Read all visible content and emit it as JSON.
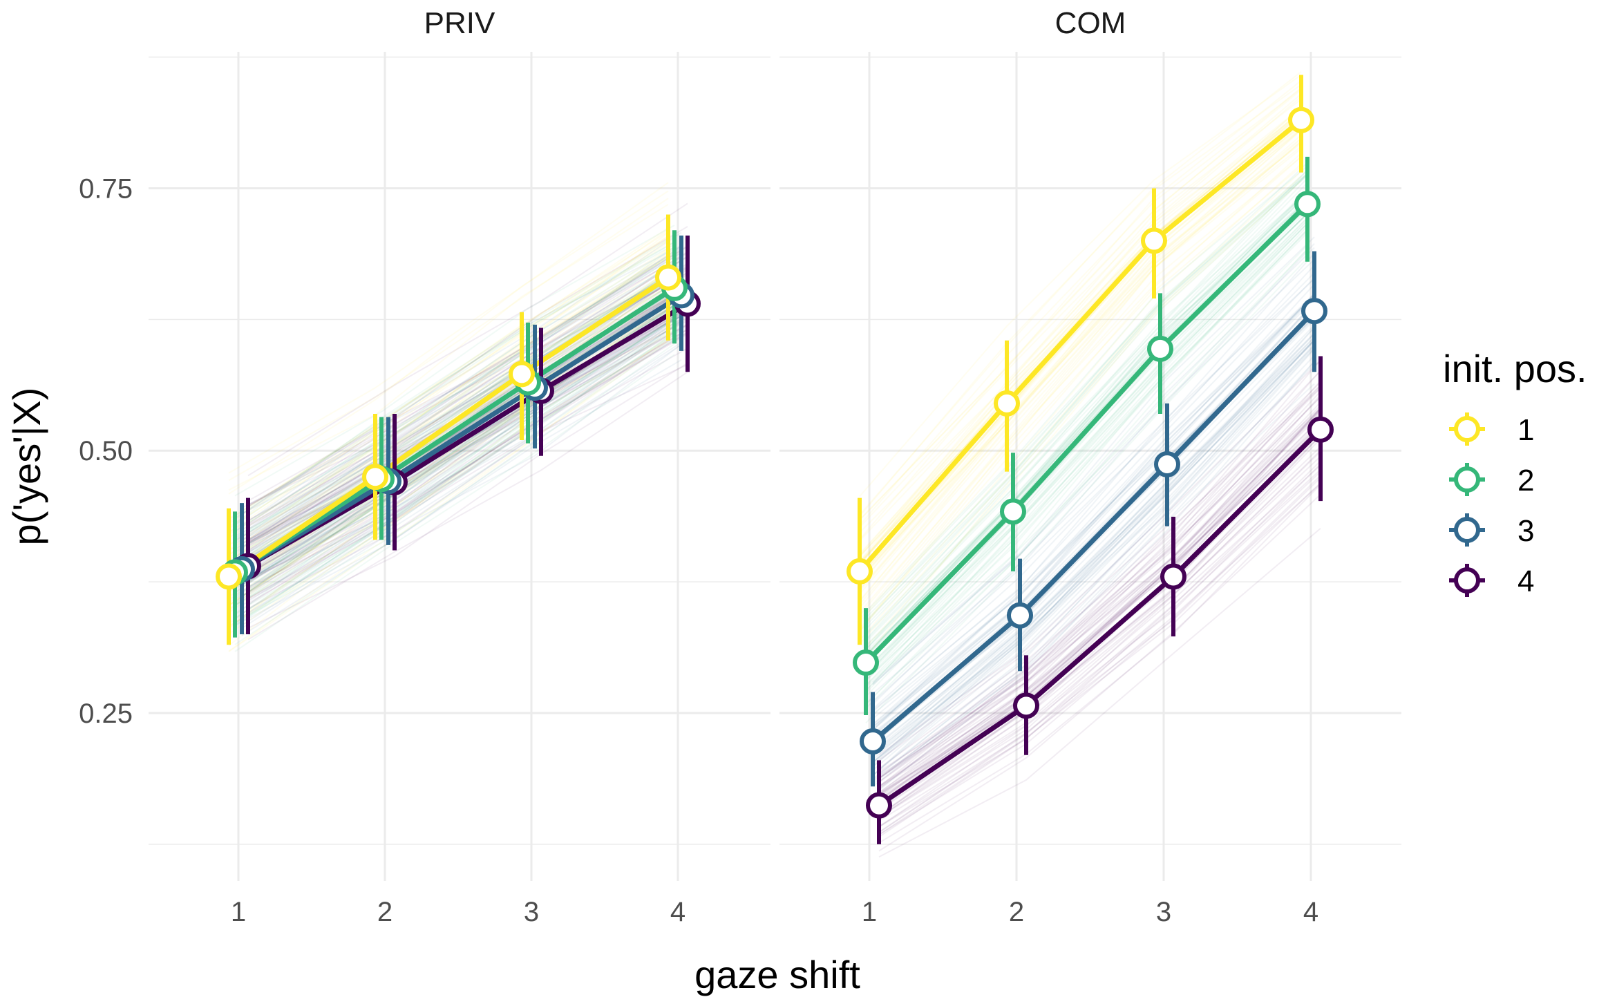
{
  "chart_data": {
    "type": "line",
    "xlabel": "gaze shift",
    "ylabel": "p('yes'|X)",
    "x": [
      1,
      2,
      3,
      4
    ],
    "x_tick_labels": [
      "1",
      "2",
      "3",
      "4"
    ],
    "ylim": [
      0.09,
      0.88
    ],
    "y_major_ticks": [
      0.25,
      0.5,
      0.75
    ],
    "y_tick_labels": [
      "0.25",
      "0.50",
      "0.75"
    ],
    "y_minor_gridlines": [
      0.125,
      0.375,
      0.625,
      0.875
    ],
    "grid": true,
    "legend": {
      "title": "init. pos.",
      "position": "right",
      "entries": [
        "1",
        "2",
        "3",
        "4"
      ]
    },
    "colors": {
      "1": "#FDE725",
      "2": "#35B779",
      "3": "#31688E",
      "4": "#440154",
      "grid": "#EBEBEB",
      "point_fill": "#FFFFFF"
    },
    "panels": [
      {
        "title": "PRIV",
        "series": [
          {
            "name": "1",
            "values": [
              0.38,
              0.475,
              0.573,
              0.665
            ],
            "lower": [
              0.315,
              0.415,
              0.51,
              0.605
            ],
            "upper": [
              0.445,
              0.535,
              0.632,
              0.725
            ]
          },
          {
            "name": "2",
            "values": [
              0.384,
              0.473,
              0.565,
              0.655
            ],
            "lower": [
              0.322,
              0.415,
              0.507,
              0.602
            ],
            "upper": [
              0.442,
              0.532,
              0.622,
              0.71
            ]
          },
          {
            "name": "3",
            "values": [
              0.387,
              0.471,
              0.56,
              0.648
            ],
            "lower": [
              0.325,
              0.41,
              0.502,
              0.595
            ],
            "upper": [
              0.45,
              0.532,
              0.62,
              0.705
            ]
          },
          {
            "name": "4",
            "values": [
              0.39,
              0.47,
              0.557,
              0.64
            ],
            "lower": [
              0.325,
              0.405,
              0.495,
              0.575
            ],
            "upper": [
              0.455,
              0.535,
              0.617,
              0.705
            ]
          }
        ]
      },
      {
        "title": "COM",
        "series": [
          {
            "name": "1",
            "values": [
              0.385,
              0.545,
              0.7,
              0.815
            ],
            "lower": [
              0.315,
              0.48,
              0.645,
              0.765
            ],
            "upper": [
              0.455,
              0.605,
              0.75,
              0.858
            ]
          },
          {
            "name": "2",
            "values": [
              0.298,
              0.442,
              0.597,
              0.735
            ],
            "lower": [
              0.248,
              0.385,
              0.535,
              0.68
            ],
            "upper": [
              0.35,
              0.498,
              0.65,
              0.78
            ]
          },
          {
            "name": "3",
            "values": [
              0.223,
              0.343,
              0.487,
              0.633
            ],
            "lower": [
              0.18,
              0.29,
              0.428,
              0.575
            ],
            "upper": [
              0.27,
              0.397,
              0.545,
              0.69
            ]
          },
          {
            "name": "4",
            "values": [
              0.162,
              0.257,
              0.38,
              0.52
            ],
            "lower": [
              0.125,
              0.21,
              0.323,
              0.452
            ],
            "upper": [
              0.205,
              0.305,
              0.437,
              0.59
            ]
          }
        ]
      }
    ]
  }
}
